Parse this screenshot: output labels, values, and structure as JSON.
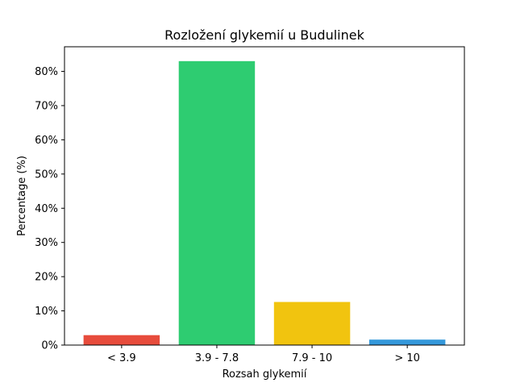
{
  "chart_data": {
    "type": "bar",
    "title": "Rozložení glykemií u  Budulinek",
    "xlabel": "Rozsah glykemií",
    "ylabel": "Percentage (%)",
    "categories": [
      "< 3.9",
      "3.9 - 7.8",
      "7.9 - 10",
      "> 10"
    ],
    "values": [
      2.9,
      83.0,
      12.6,
      1.6
    ],
    "colors": [
      "#e74c3c",
      "#2ecc71",
      "#f1c40f",
      "#3498db"
    ],
    "ylim": [
      0,
      87.2
    ],
    "yticks": [
      0,
      10,
      20,
      30,
      40,
      50,
      60,
      70,
      80
    ],
    "ytick_labels": [
      "0%",
      "10%",
      "20%",
      "30%",
      "40%",
      "50%",
      "60%",
      "70%",
      "80%"
    ],
    "grid": false,
    "legend": "none"
  }
}
